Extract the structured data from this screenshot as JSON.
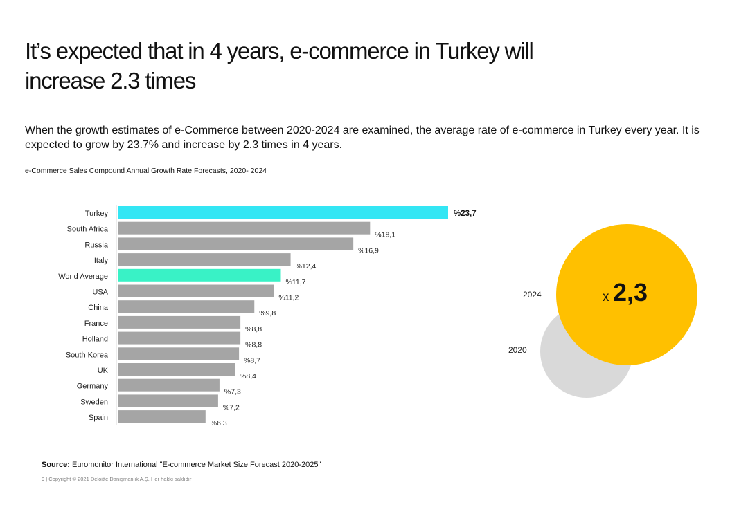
{
  "header": {
    "title": "It’s expected that in 4 years, e-commerce in Turkey will increase 2.3 times"
  },
  "intro": {
    "text": "When the growth estimates of e-Commerce between 2020-2024 are examined, the average rate of e-commerce in Turkey every year. It is expected to grow by 23.7% and increase by 2.3 times in 4 years."
  },
  "chart_data": [
    {
      "type": "bar",
      "orientation": "horizontal",
      "title": "e-Commerce Sales Compound Annual Growth Rate Forecasts, 2020- 2024",
      "xlabel": "",
      "ylabel": "",
      "xlim": [
        0,
        23.7
      ],
      "grid": false,
      "categories": [
        "Turkey",
        "South Africa",
        "Russia",
        "Italy",
        "World Average",
        "USA",
        "China",
        "France",
        "Holland",
        "South Korea",
        "UK",
        "Germany",
        "Sweden",
        "Spain"
      ],
      "values": [
        23.7,
        18.1,
        16.9,
        12.4,
        11.7,
        11.2,
        9.8,
        8.8,
        8.8,
        8.7,
        8.4,
        7.3,
        7.2,
        6.3
      ],
      "value_labels": [
        "%23,7",
        "%18,1",
        "%16,9",
        "%12,4",
        "%11,7",
        "%11,2",
        "%9,8",
        "%8,8",
        "%8,8",
        "%8,7",
        "%8,4",
        "%7,3",
        "%7,2",
        "%6,3"
      ],
      "colors": {
        "Turkey": "#33E6F4",
        "World Average": "#39F2C6",
        "default": "#A5A5A5"
      }
    },
    {
      "type": "bubble",
      "categories": [
        "2020",
        "2024"
      ],
      "values": [
        1,
        2.3
      ],
      "annotation_prefix": "x",
      "annotation": "2,3",
      "colors": {
        "2020": "#D9D9D9",
        "2024": "#FFC000"
      }
    }
  ],
  "source": {
    "label": "Source:",
    "text": " Euromonitor International \"E-commerce Market Size Forecast 2020-2025\""
  },
  "footer": {
    "copyright": "9 | Copyright © 2021 Deloitte Danışmanlık A.Ş. Her hakkı saklıdır"
  }
}
